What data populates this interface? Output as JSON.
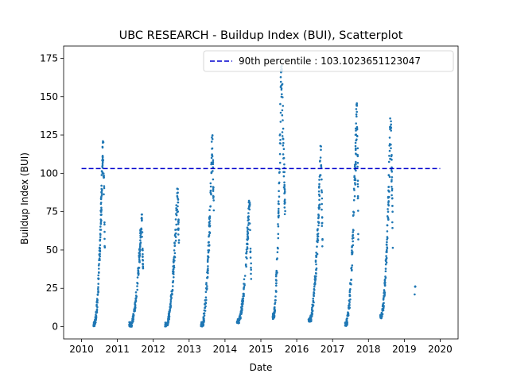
{
  "chart_data": {
    "type": "scatter",
    "title": "UBC RESEARCH - Buildup Index (BUI), Scatterplot",
    "xlabel": "Date",
    "ylabel": "Buildup Index (BUI)",
    "xlim": [
      2009.5,
      2020.5
    ],
    "ylim": [
      -8,
      183
    ],
    "x_ticks": [
      "2010",
      "2011",
      "2012",
      "2013",
      "2014",
      "2015",
      "2016",
      "2017",
      "2018",
      "2019",
      "2020"
    ],
    "y_ticks": [
      "0",
      "25",
      "50",
      "75",
      "100",
      "125",
      "150",
      "175"
    ],
    "legend_placement": "top-right",
    "grid": false,
    "point_color": "#1f77b4",
    "reference_line": {
      "label": "90th percentile : 103.1023651123047",
      "y": 103.1023651123047,
      "x_range": [
        2010.0,
        2020.0
      ],
      "color": "#0000cd",
      "style": "dashed"
    },
    "series": [
      {
        "seasons": [
          {
            "start": 2010.33,
            "peak_x": 2010.6,
            "end": 2010.65,
            "min": 0,
            "peak": 124
          },
          {
            "start": 2011.33,
            "peak_x": 2011.68,
            "end": 2011.72,
            "min": 0,
            "peak": 74
          },
          {
            "start": 2012.33,
            "peak_x": 2012.68,
            "end": 2012.73,
            "min": 0,
            "peak": 90
          },
          {
            "start": 2013.33,
            "peak_x": 2013.65,
            "end": 2013.7,
            "min": 0,
            "peak": 125
          },
          {
            "start": 2014.33,
            "peak_x": 2014.68,
            "end": 2014.73,
            "min": 2,
            "peak": 83
          },
          {
            "start": 2015.33,
            "peak_x": 2015.57,
            "end": 2015.68,
            "min": 5,
            "peak": 170
          },
          {
            "start": 2016.33,
            "peak_x": 2016.68,
            "end": 2016.72,
            "min": 3,
            "peak": 118
          },
          {
            "start": 2017.35,
            "peak_x": 2017.68,
            "end": 2017.72,
            "min": 0,
            "peak": 147
          },
          {
            "start": 2018.33,
            "peak_x": 2018.62,
            "end": 2018.68,
            "min": 5,
            "peak": 136
          },
          {
            "start": 2019.28,
            "peak_x": 2019.3,
            "end": 2019.32,
            "min": 20,
            "peak": 27
          }
        ]
      }
    ]
  }
}
